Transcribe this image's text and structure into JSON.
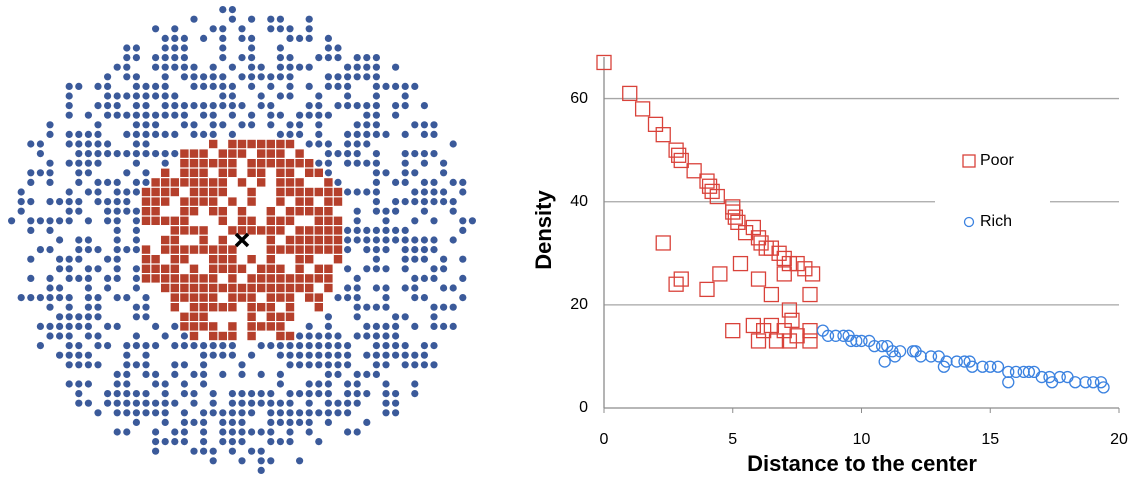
{
  "chart_data": {
    "type": "scatter",
    "xlabel": "Distance to the center",
    "ylabel": "Density",
    "xlim": [
      0,
      20
    ],
    "ylim": [
      0,
      70
    ],
    "xticks": [
      0,
      5,
      10,
      15,
      20
    ],
    "yticks": [
      0,
      20,
      40,
      60
    ],
    "grid": true,
    "series": [
      {
        "name": "Poor",
        "color": "#d9423a",
        "marker": "square",
        "x": [
          0,
          1,
          1.5,
          2,
          2.3,
          2.8,
          2.9,
          3,
          3.5,
          4,
          4.1,
          4.2,
          4.4,
          5,
          5,
          5.1,
          5.2,
          5.5,
          5.8,
          6,
          6.1,
          6.3,
          6.5,
          6.8,
          7,
          7.2,
          7.5,
          7.8,
          8.1,
          2.3,
          2.8,
          3,
          4,
          4.5,
          5.3,
          6,
          6.5,
          7,
          7.2,
          7.3,
          8,
          5,
          5.8,
          6,
          6.2,
          6.5,
          7,
          7.2,
          8,
          8,
          7.5,
          6.7
        ],
        "values": [
          67,
          61,
          58,
          55,
          53,
          50,
          49,
          48,
          46,
          44,
          43,
          42,
          41,
          39,
          38,
          37,
          36,
          34,
          35,
          33,
          32,
          31,
          31,
          30,
          29,
          28,
          28,
          27,
          26,
          32,
          24,
          25,
          23,
          26,
          28,
          25,
          22,
          26,
          19,
          17,
          22,
          15,
          16,
          13,
          15,
          16,
          15,
          13,
          13,
          15,
          14,
          13
        ]
      },
      {
        "name": "Rich",
        "color": "#3b82e0",
        "marker": "circle",
        "x": [
          8.5,
          8.7,
          9,
          9.3,
          9.5,
          9.8,
          10,
          10.3,
          10.5,
          10.8,
          11,
          11.2,
          11.5,
          12,
          12.3,
          12.7,
          13,
          13.3,
          13.7,
          14,
          14.3,
          14.7,
          15,
          15.3,
          15.7,
          16,
          16.3,
          16.7,
          17,
          17.3,
          17.7,
          18,
          18.3,
          18.7,
          19,
          19.3,
          19.4,
          10.9,
          11.3,
          13.2,
          15.7,
          17.4,
          14.2,
          12.1,
          9.6,
          16.5
        ],
        "values": [
          15,
          14,
          14,
          14,
          14,
          13,
          13,
          13,
          12,
          12,
          12,
          11,
          11,
          11,
          10,
          10,
          10,
          9,
          9,
          9,
          8,
          8,
          8,
          8,
          7,
          7,
          7,
          7,
          6,
          6,
          6,
          6,
          5,
          5,
          5,
          5,
          4,
          9,
          10,
          8,
          5,
          5,
          9,
          11,
          13,
          7
        ]
      }
    ],
    "legend": "right"
  }
}
